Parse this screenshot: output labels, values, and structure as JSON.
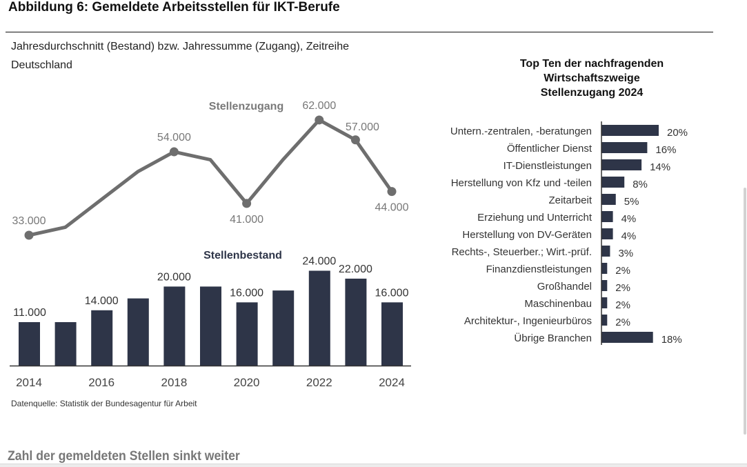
{
  "figure": {
    "title": "Abbildung 6: Gemeldete Arbeitsstellen für IKT-Berufe",
    "subtitle_line1": "Jahresdurchschnitt (Bestand) bzw. Jahressumme (Zugang), Zeitreihe",
    "subtitle_line2": "Deutschland",
    "source": "Datenquelle: Statistik der Bundesagentur für Arbeit",
    "next_section_heading": "Zahl der gemeldeten Stellen sinkt weiter"
  },
  "colors": {
    "bar": "#2e3548",
    "line": "#6e6e6e",
    "line_label": "#777777",
    "text": "#222222"
  },
  "chart_data": [
    {
      "type": "line",
      "title": "Stellenzugang",
      "x": [
        2014,
        2015,
        2016,
        2017,
        2018,
        2019,
        2020,
        2021,
        2022,
        2023,
        2024
      ],
      "values": [
        33000,
        35000,
        42000,
        49000,
        54000,
        52000,
        41000,
        52000,
        62000,
        57000,
        44000
      ],
      "data_labels": [
        {
          "x": 2014,
          "text": "33.000",
          "pos": "above"
        },
        {
          "x": 2018,
          "text": "54.000",
          "pos": "above"
        },
        {
          "x": 2020,
          "text": "41.000",
          "pos": "below"
        },
        {
          "x": 2022,
          "text": "62.000",
          "pos": "above"
        },
        {
          "x": 2023,
          "text": "57.000",
          "pos": "above-right"
        },
        {
          "x": 2024,
          "text": "44.000",
          "pos": "below"
        }
      ],
      "markers_at": [
        2014,
        2018,
        2020,
        2022,
        2023,
        2024
      ],
      "xlabel": "",
      "ylabel": "",
      "grid": false
    },
    {
      "type": "bar",
      "title": "Stellenbestand",
      "categories": [
        "2014",
        "2015",
        "2016",
        "2017",
        "2018",
        "2019",
        "2020",
        "2021",
        "2022",
        "2023",
        "2024"
      ],
      "values": [
        11000,
        11000,
        14000,
        17000,
        20000,
        20000,
        16000,
        19000,
        24000,
        22000,
        16000
      ],
      "data_labels": [
        {
          "category": "2014",
          "text": "11.000"
        },
        {
          "category": "2016",
          "text": "14.000"
        },
        {
          "category": "2018",
          "text": "20.000"
        },
        {
          "category": "2020",
          "text": "16.000"
        },
        {
          "category": "2022",
          "text": "24.000"
        },
        {
          "category": "2023",
          "text": "22.000"
        },
        {
          "category": "2024",
          "text": "16.000"
        }
      ],
      "x_tick_labels": [
        "2014",
        "2016",
        "2018",
        "2020",
        "2022",
        "2024"
      ],
      "xlabel": "",
      "ylabel": "",
      "ylim": [
        0,
        25000
      ],
      "grid": false
    },
    {
      "type": "bar",
      "orientation": "horizontal",
      "title": "Top Ten der nachfragenden Wirtschaftszweige Stellenzugang 2024",
      "title_lines": [
        "Top Ten der nachfragenden",
        "Wirtschaftszweige",
        "Stellenzugang 2024"
      ],
      "categories": [
        "Untern.-zentralen, -beratungen",
        "Öffentlicher Dienst",
        "IT-Dienstleistungen",
        "Herstellung von Kfz und -teilen",
        "Zeitarbeit",
        "Erziehung und Unterricht",
        "Herstellung von DV-Geräten",
        "Rechts-, Steuerber.; Wirt.-prüf.",
        "Finanzdienstleistungen",
        "Großhandel",
        "Maschinenbau",
        "Architektur-, Ingenieurbüros",
        "Übrige Branchen"
      ],
      "values": [
        20,
        16,
        14,
        8,
        5,
        4,
        4,
        3,
        2,
        2,
        2,
        2,
        18
      ],
      "unit": "%",
      "xlim": [
        0,
        20
      ],
      "grid": false
    }
  ]
}
